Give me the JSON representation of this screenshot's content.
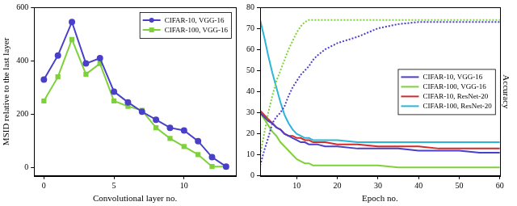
{
  "chart_data": [
    {
      "type": "line",
      "x_label": "Convolutional layer no.",
      "y_label": "MSID relative to the last layer",
      "x": [
        0,
        1,
        2,
        3,
        4,
        5,
        6,
        7,
        8,
        9,
        10,
        11,
        12,
        13
      ],
      "xlim": [
        -0.7,
        13.7
      ],
      "xticks": [
        0,
        5,
        10
      ],
      "ylim": [
        -30,
        600
      ],
      "yticks": [
        0,
        200,
        400,
        600
      ],
      "grid": false,
      "legend": "upper right",
      "series": [
        {
          "name": "CIFAR-10, VGG-16",
          "color": "#4a3fc8",
          "marker": "circle",
          "line_style": "solid",
          "values": [
            330,
            420,
            545,
            390,
            410,
            285,
            245,
            210,
            180,
            150,
            140,
            100,
            40,
            5
          ]
        },
        {
          "name": "CIFAR-100, VGG-16",
          "color": "#7fd13b",
          "marker": "square",
          "line_style": "solid",
          "values": [
            250,
            340,
            480,
            350,
            390,
            250,
            230,
            215,
            150,
            110,
            80,
            50,
            5,
            5
          ]
        }
      ]
    },
    {
      "type": "line",
      "x_label": "Epoch no.",
      "y_label": "Accuracy",
      "x": [
        1,
        2,
        3,
        4,
        5,
        6,
        7,
        8,
        9,
        10,
        11,
        12,
        13,
        14,
        15,
        17,
        20,
        25,
        30,
        35,
        40,
        45,
        50,
        55,
        60
      ],
      "xlim": [
        1,
        60
      ],
      "xticks": [
        10,
        20,
        30,
        40,
        50,
        60
      ],
      "ylim": [
        0,
        80
      ],
      "yticks": [
        0,
        10,
        20,
        30,
        40,
        50,
        60,
        70,
        80
      ],
      "grid": false,
      "legend": "center right",
      "series": [
        {
          "name": "CIFAR-10, VGG-16",
          "color": "#4a3fc8",
          "marker": "none",
          "line_style": "solid",
          "values": [
            30,
            28,
            26,
            25,
            23,
            22,
            20,
            19,
            18,
            17,
            16,
            16,
            15,
            15,
            15,
            14,
            14,
            13,
            13,
            13,
            12,
            12,
            12,
            11,
            11
          ]
        },
        {
          "color": "#4a3fc8",
          "marker": "none",
          "line_style": "dotted",
          "values": [
            5,
            12,
            18,
            25,
            28,
            30,
            33,
            38,
            42,
            45,
            48,
            50,
            52,
            55,
            57,
            60,
            63,
            66,
            70,
            72,
            73,
            73,
            73,
            73,
            73
          ]
        },
        {
          "name": "CIFAR-100, VGG-16",
          "color": "#7fd13b",
          "marker": "none",
          "line_style": "solid",
          "values": [
            30,
            27,
            24,
            21,
            19,
            16,
            14,
            12,
            10,
            8,
            7,
            6,
            6,
            5,
            5,
            5,
            5,
            5,
            5,
            4,
            4,
            4,
            4,
            4,
            4
          ]
        },
        {
          "color": "#7fd13b",
          "marker": "none",
          "line_style": "dotted",
          "values": [
            10,
            20,
            30,
            38,
            45,
            50,
            55,
            60,
            64,
            68,
            71,
            73,
            74,
            74,
            74,
            74,
            74,
            74,
            74,
            74,
            74,
            74,
            74,
            74,
            74
          ]
        },
        {
          "name": "CIFAR-10, ResNet-20",
          "color": "#d42a2a",
          "marker": "none",
          "line_style": "solid",
          "values": [
            31,
            29,
            27,
            25,
            23,
            22,
            20,
            19,
            19,
            18,
            18,
            17,
            17,
            16,
            16,
            16,
            15,
            15,
            14,
            14,
            14,
            13,
            13,
            13,
            13
          ]
        },
        {
          "name": "CIFAR-100, ResNet-20",
          "color": "#2bb5d8",
          "marker": "none",
          "line_style": "solid",
          "values": [
            74,
            66,
            57,
            49,
            42,
            35,
            29,
            25,
            22,
            20,
            19,
            18,
            18,
            17,
            17,
            17,
            17,
            16,
            16,
            16,
            16,
            16,
            16,
            16,
            16
          ]
        }
      ]
    }
  ]
}
